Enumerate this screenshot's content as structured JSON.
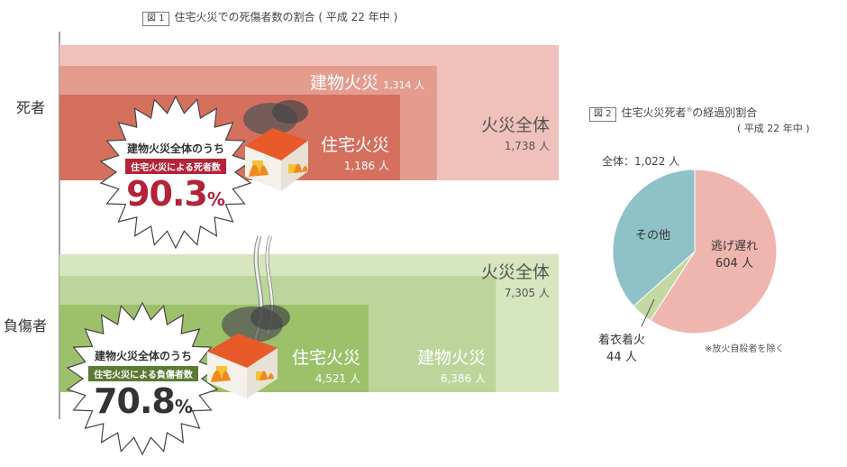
{
  "figure1": {
    "tag": "図 1",
    "title": "住宅火災での死傷者数の割合 ( 平成 22 年中 )",
    "deaths": {
      "label": "死者",
      "total": {
        "name": "火災全体",
        "value_text": "1,738 人",
        "value": 1738
      },
      "building": {
        "name": "建物火災",
        "value_text": "1,314 人",
        "value": 1314
      },
      "housing": {
        "name": "住宅火災",
        "value_text": "1,186 人",
        "value": 1186
      },
      "badge": {
        "line1": "建物火災全体のうち",
        "line2": "住宅火災による死者数",
        "percent": "90.3",
        "percent_unit": "%"
      }
    },
    "injuries": {
      "label": "負傷者",
      "total": {
        "name": "火災全体",
        "value_text": "7,305 人",
        "value": 7305
      },
      "building": {
        "name": "建物火災",
        "value_text": "6,386 人",
        "value": 6386
      },
      "housing": {
        "name": "住宅火災",
        "value_text": "4,521 人",
        "value": 4521
      },
      "badge": {
        "line1": "建物火災全体のうち",
        "line2": "住宅火災による負傷者数",
        "percent": "70.8",
        "percent_unit": "%"
      }
    }
  },
  "figure2": {
    "tag": "図 2",
    "title_main": "住宅火災死者",
    "title_mark": "※",
    "title_rest": "の経過別割合",
    "title_sub": "( 平成 22 年中 )",
    "total_label": "全体：1,022 人",
    "note": "※放火自殺者を除く"
  },
  "chart_data": [
    {
      "type": "bar",
      "title": "住宅火災での死傷者数の割合 ( 平成 22 年中 )",
      "categories": [
        "死者",
        "負傷者"
      ],
      "series": [
        {
          "name": "火災全体",
          "values": [
            1738,
            7305
          ]
        },
        {
          "name": "建物火災",
          "values": [
            1314,
            6386
          ]
        },
        {
          "name": "住宅火災",
          "values": [
            1186,
            4521
          ]
        }
      ]
    },
    {
      "type": "pie",
      "title": "住宅火災死者※の経過別割合",
      "total": 1022,
      "slices": [
        {
          "label": "逃げ遅れ",
          "value": 604,
          "value_text": "604 人",
          "color": "#efb6af"
        },
        {
          "label": "着衣着火",
          "value": 44,
          "value_text": "44 人",
          "color": "#c3d9a2"
        },
        {
          "label": "その他",
          "value": 374,
          "value_text": "",
          "color": "#8ec1c8"
        }
      ]
    }
  ],
  "colors": {
    "death_total": "#f0c1ba",
    "death_building": "#e49c8f",
    "death_housing": "#d5705f",
    "injury_total": "#d6e6bf",
    "injury_building": "#bcd59a",
    "injury_housing": "#9dc16a",
    "death_accent": "#b4233a",
    "injury_accent": "#5b7a32"
  }
}
